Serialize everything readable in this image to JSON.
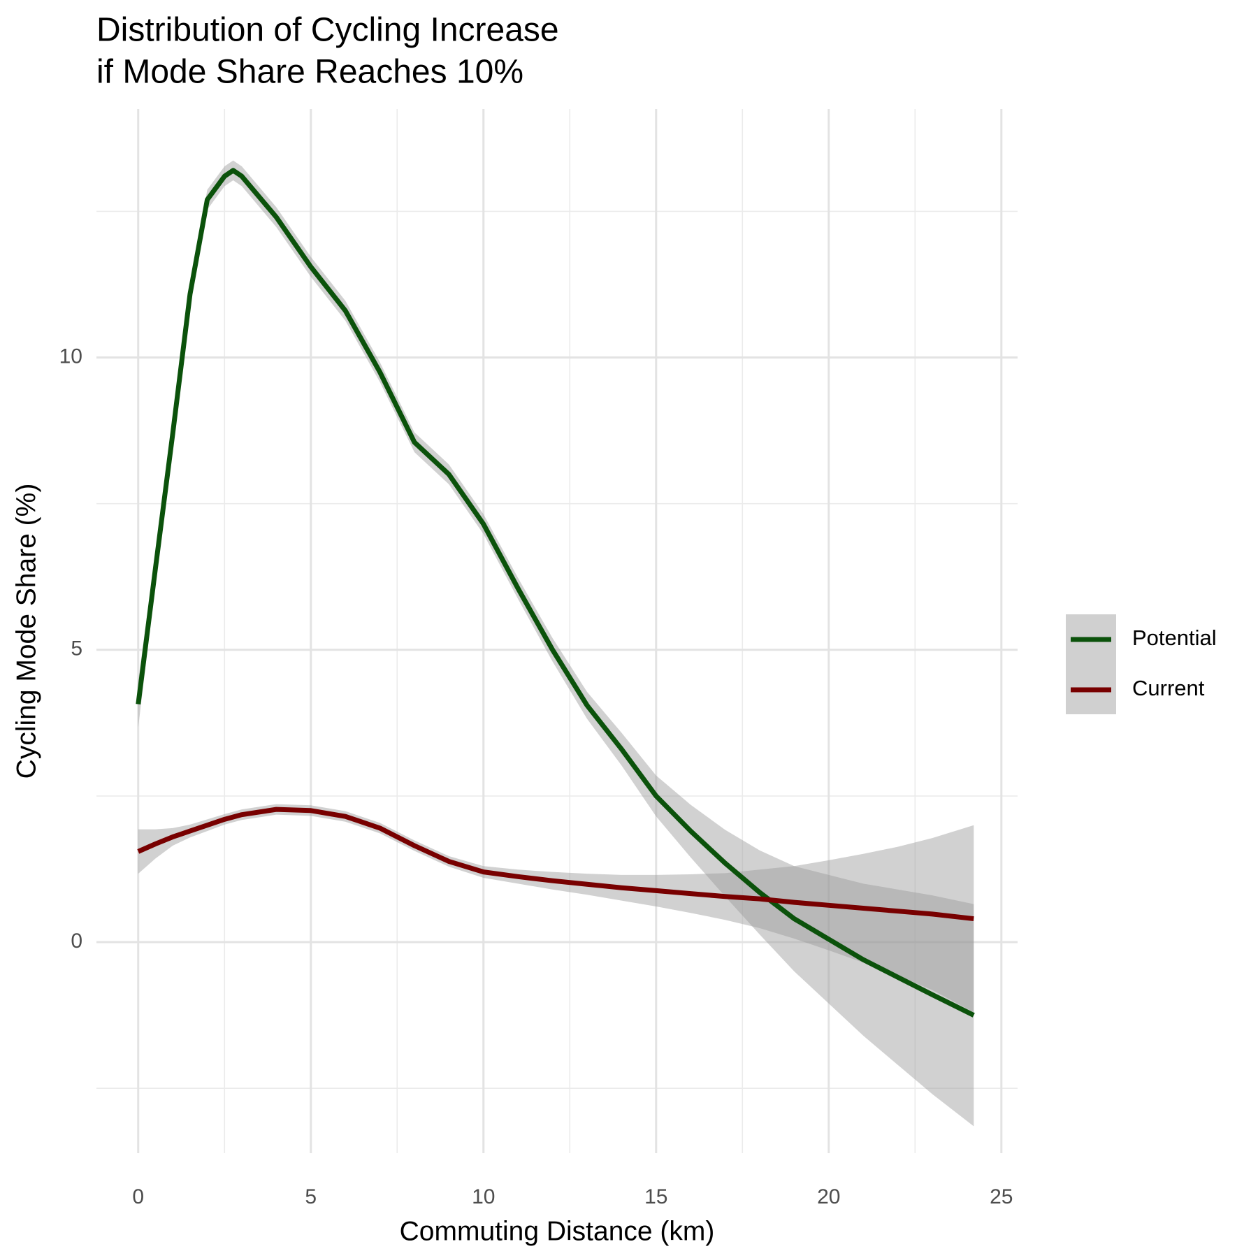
{
  "chart_data": {
    "type": "line",
    "title": [
      "Distribution of Cycling Increase",
      "if Mode Share Reaches 10%"
    ],
    "x_label": "Commuting Distance (km)",
    "y_label": "Cycling Mode Share (%)",
    "x": [
      0,
      0.5,
      1,
      1.5,
      2,
      2.5,
      2.75,
      3,
      4,
      5,
      6,
      7,
      8,
      9,
      10,
      11,
      12,
      13,
      14,
      15,
      16,
      17,
      18,
      19,
      20,
      21,
      22,
      23,
      24.2
    ],
    "series": [
      {
        "name": "Potential",
        "color": "#0b520b",
        "values": [
          4.07,
          6.4,
          8.7,
          11.08,
          12.7,
          13.1,
          13.2,
          13.1,
          12.4,
          11.55,
          10.8,
          9.75,
          8.55,
          8.0,
          7.15,
          6.05,
          5.0,
          4.05,
          3.3,
          2.5,
          1.9,
          1.35,
          0.85,
          0.4,
          0.05,
          -0.3,
          -0.6,
          -0.9,
          -1.25
        ],
        "lower": [
          3.67,
          6.15,
          8.5,
          10.9,
          12.53,
          12.93,
          13.03,
          12.93,
          12.23,
          11.38,
          10.63,
          9.58,
          8.38,
          7.83,
          6.98,
          5.87,
          4.8,
          3.82,
          3.02,
          2.15,
          1.45,
          0.78,
          0.13,
          -0.5,
          -1.05,
          -1.6,
          -2.1,
          -2.6,
          -3.15
        ],
        "upper": [
          4.47,
          6.65,
          8.9,
          11.26,
          12.87,
          13.27,
          13.37,
          13.27,
          12.57,
          11.72,
          10.97,
          9.92,
          8.72,
          8.17,
          7.32,
          6.23,
          5.2,
          4.28,
          3.58,
          2.85,
          2.35,
          1.92,
          1.57,
          1.3,
          1.15,
          1.0,
          0.9,
          0.8,
          0.65
        ]
      },
      {
        "name": "Current",
        "color": "#780000",
        "values": [
          1.55,
          1.68,
          1.8,
          1.9,
          2.0,
          2.1,
          2.14,
          2.18,
          2.27,
          2.25,
          2.15,
          1.95,
          1.65,
          1.38,
          1.2,
          1.12,
          1.05,
          0.99,
          0.93,
          0.88,
          0.83,
          0.78,
          0.74,
          0.68,
          0.63,
          0.58,
          0.53,
          0.48,
          0.4
        ],
        "lower": [
          1.17,
          1.43,
          1.65,
          1.79,
          1.9,
          2.01,
          2.05,
          2.09,
          2.18,
          2.16,
          2.06,
          1.86,
          1.56,
          1.29,
          1.1,
          1.0,
          0.9,
          0.81,
          0.71,
          0.61,
          0.5,
          0.38,
          0.24,
          0.06,
          -0.14,
          -0.35,
          -0.57,
          -0.82,
          -1.2
        ],
        "upper": [
          1.93,
          1.93,
          1.95,
          2.01,
          2.1,
          2.19,
          2.23,
          2.27,
          2.36,
          2.34,
          2.24,
          2.04,
          1.74,
          1.47,
          1.3,
          1.24,
          1.2,
          1.17,
          1.15,
          1.15,
          1.16,
          1.18,
          1.24,
          1.3,
          1.4,
          1.51,
          1.63,
          1.78,
          2.0
        ]
      }
    ],
    "xlim": [
      -1.21,
      25.47
    ],
    "ylim": [
      -3.61,
      14.25
    ],
    "xticks": [
      0,
      5,
      10,
      15,
      20,
      25
    ],
    "yticks": [
      0,
      5,
      10
    ],
    "xminor": [
      2.5,
      7.5,
      12.5,
      17.5,
      22.5
    ],
    "yminor": [
      -2.5,
      2.5,
      7.5,
      12.5
    ],
    "grid": true,
    "ribbon_color": "#999999",
    "legend_position": "right"
  }
}
